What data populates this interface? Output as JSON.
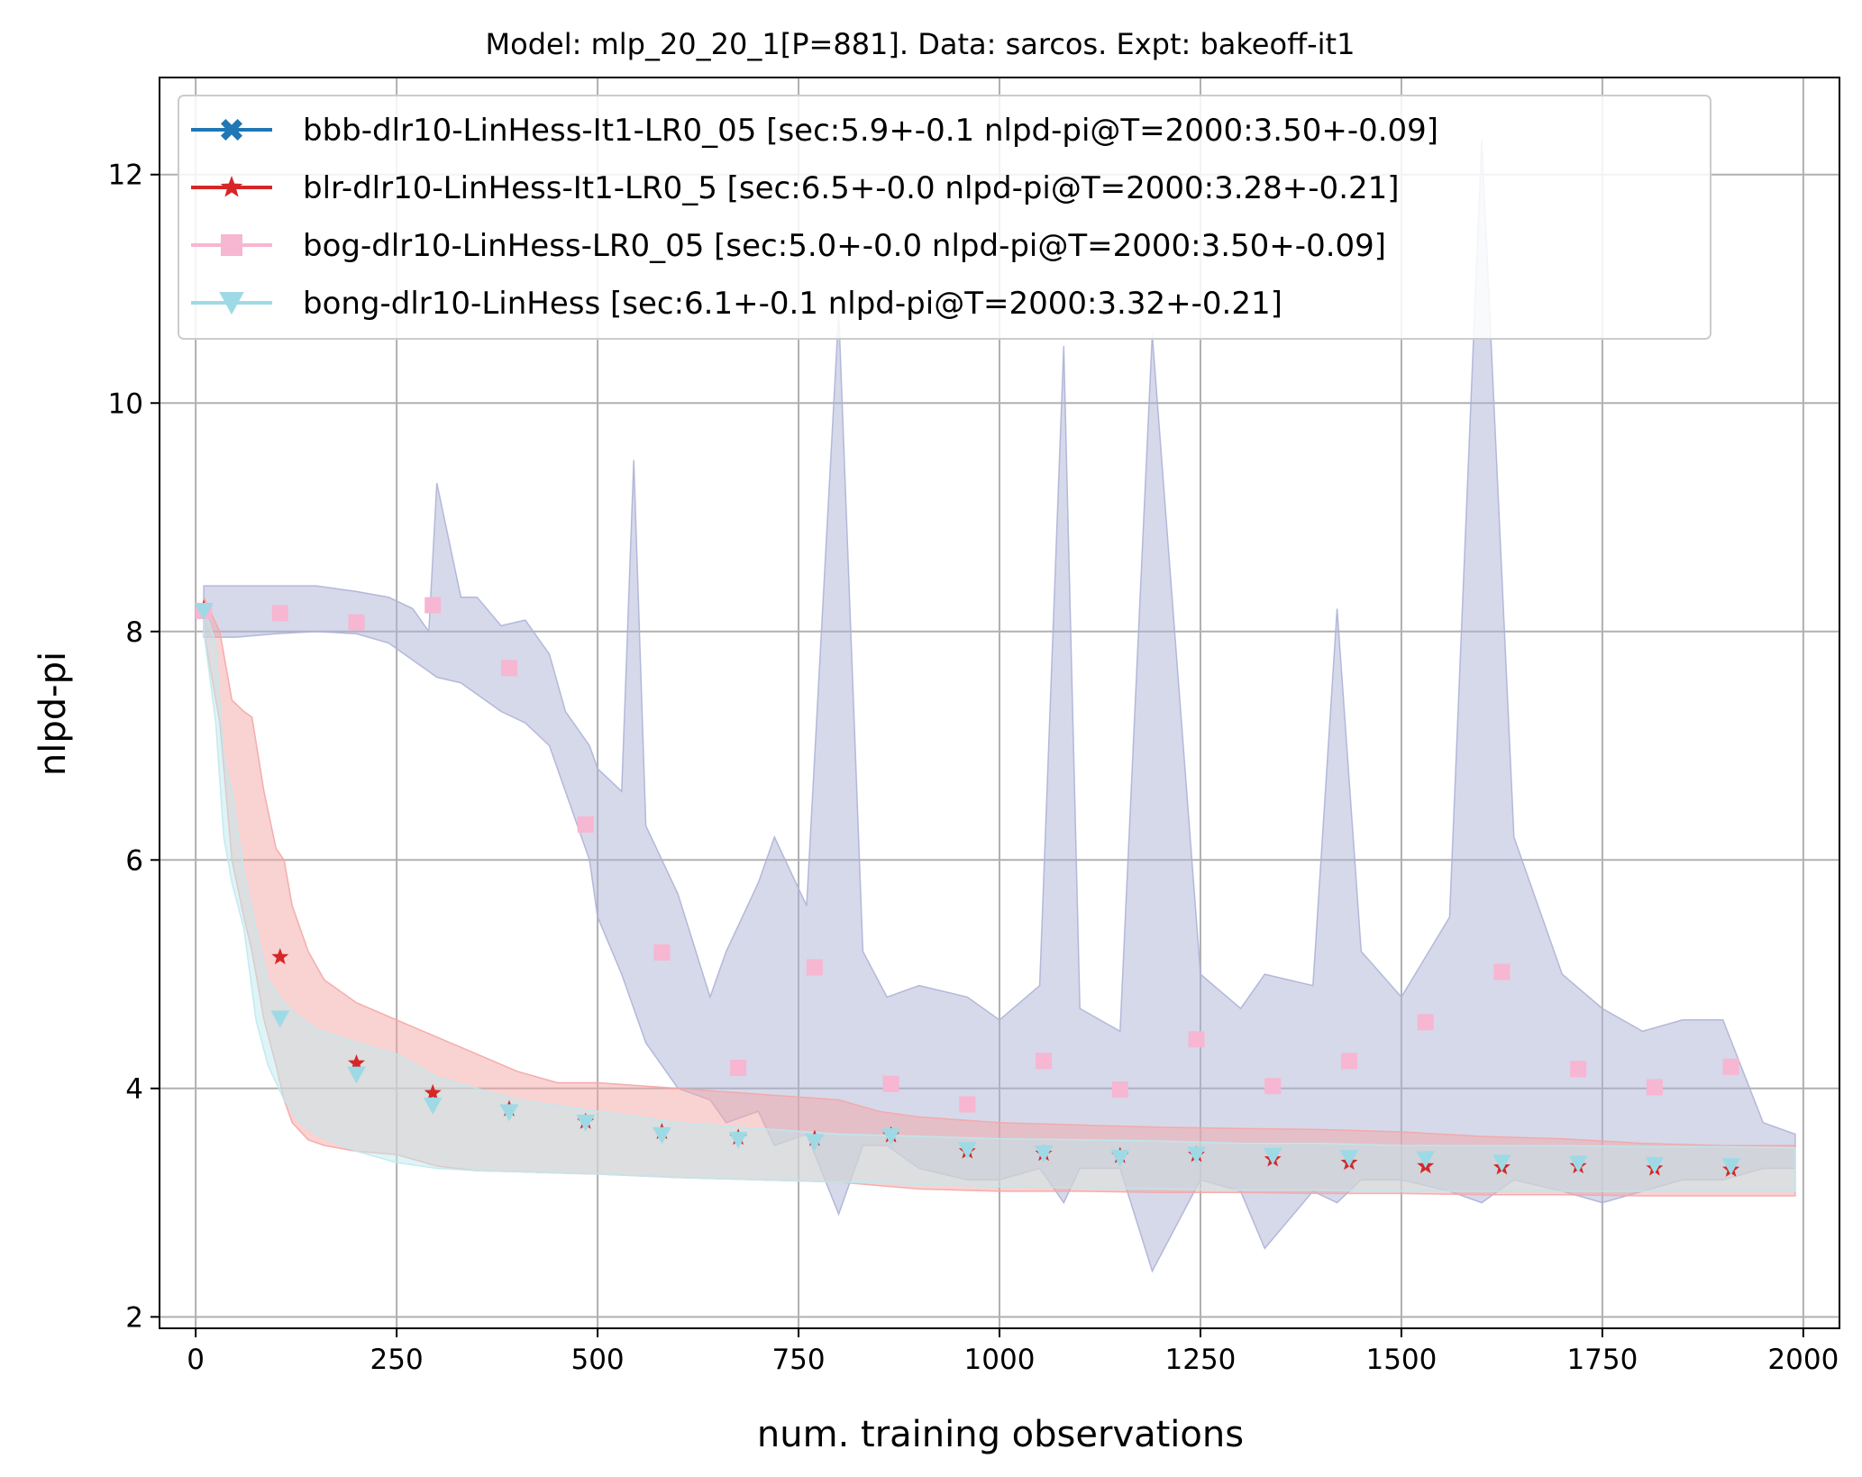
{
  "chart_data": {
    "type": "line",
    "title": "Model: mlp_20_20_1[P=881]. Data: sarcos. Expt: bakeoff-it1",
    "xlabel": "num. training observations",
    "ylabel": "nlpd-pi",
    "xlim": [
      -45,
      2045
    ],
    "ylim": [
      1.9,
      12.85
    ],
    "xticks": [
      0,
      250,
      500,
      750,
      1000,
      1250,
      1500,
      1750,
      2000
    ],
    "yticks": [
      2,
      4,
      6,
      8,
      10,
      12
    ],
    "grid": true,
    "legend_position": "top-left",
    "series": [
      {
        "name": "bbb-dlr10-LinHess-It1-LR0_05 [sec:5.9+-0.1 nlpd-pi@T=2000:3.50+-0.09]",
        "color": "#1f77b4",
        "marker": "x-filled",
        "x": [
          10,
          105,
          200,
          295,
          390,
          485,
          580,
          675,
          770,
          865,
          960,
          1055,
          1150,
          1245,
          1340,
          1435,
          1530,
          1625,
          1720,
          1815,
          1910
        ],
        "y": [
          8.18,
          8.16,
          8.08,
          8.23,
          7.68,
          6.31,
          5.19,
          4.18,
          5.06,
          4.04,
          3.86,
          4.24,
          3.99,
          4.43,
          4.02,
          4.24,
          4.58,
          5.02,
          4.17,
          4.01,
          4.19
        ]
      },
      {
        "name": "blr-dlr10-LinHess-It1-LR0_5 [sec:6.5+-0.0 nlpd-pi@T=2000:3.28+-0.21]",
        "color": "#d62728",
        "marker": "star",
        "x": [
          10,
          105,
          200,
          295,
          390,
          485,
          580,
          675,
          770,
          865,
          960,
          1055,
          1150,
          1245,
          1340,
          1435,
          1530,
          1625,
          1720,
          1815,
          1910
        ],
        "y": [
          8.2,
          5.15,
          4.22,
          3.96,
          3.82,
          3.71,
          3.62,
          3.57,
          3.56,
          3.59,
          3.45,
          3.43,
          3.41,
          3.42,
          3.38,
          3.35,
          3.32,
          3.31,
          3.32,
          3.3,
          3.29
        ]
      },
      {
        "name": "bog-dlr10-LinHess-LR0_05 [sec:5.0+-0.0 nlpd-pi@T=2000:3.50+-0.09]",
        "color": "#f7b6d2",
        "marker": "square",
        "x": [
          10,
          105,
          200,
          295,
          390,
          485,
          580,
          675,
          770,
          865,
          960,
          1055,
          1150,
          1245,
          1340,
          1435,
          1530,
          1625,
          1720,
          1815,
          1910
        ],
        "y": [
          8.18,
          8.16,
          8.08,
          8.23,
          7.68,
          6.31,
          5.19,
          4.18,
          5.06,
          4.04,
          3.86,
          4.24,
          3.99,
          4.43,
          4.02,
          4.24,
          4.58,
          5.02,
          4.17,
          4.01,
          4.19
        ]
      },
      {
        "name": "bong-dlr10-LinHess [sec:6.1+-0.1 nlpd-pi@T=2000:3.32+-0.21]",
        "color": "#9edae5",
        "marker": "triangle-down",
        "x": [
          10,
          105,
          200,
          295,
          390,
          485,
          580,
          675,
          770,
          865,
          960,
          1055,
          1150,
          1245,
          1340,
          1435,
          1530,
          1625,
          1720,
          1815,
          1910
        ],
        "y": [
          8.18,
          4.61,
          4.12,
          3.85,
          3.79,
          3.7,
          3.59,
          3.55,
          3.53,
          3.58,
          3.46,
          3.43,
          3.39,
          3.42,
          3.41,
          3.39,
          3.38,
          3.35,
          3.34,
          3.33,
          3.32
        ]
      }
    ],
    "bands": [
      {
        "series": "bbb-dlr10-LinHess-It1-LR0_05 [sec:5.9+-0.1 nlpd-pi@T=2000:3.50+-0.09]",
        "color": "#aeb3d6",
        "x": [
          10,
          50,
          100,
          150,
          200,
          240,
          270,
          290,
          300,
          330,
          350,
          380,
          410,
          440,
          460,
          490,
          500,
          530,
          545,
          560,
          600,
          640,
          660,
          700,
          720,
          760,
          800,
          830,
          860,
          900,
          960,
          1000,
          1050,
          1080,
          1100,
          1150,
          1190,
          1250,
          1300,
          1330,
          1390,
          1420,
          1450,
          1500,
          1560,
          1600,
          1640,
          1700,
          1750,
          1800,
          1850,
          1900,
          1950,
          1990
        ],
        "upper": [
          8.4,
          8.4,
          8.4,
          8.4,
          8.35,
          8.3,
          8.2,
          8.0,
          9.3,
          8.3,
          8.3,
          8.05,
          8.1,
          7.8,
          7.3,
          7.0,
          6.8,
          6.6,
          9.5,
          6.3,
          5.7,
          4.8,
          5.2,
          5.8,
          6.2,
          5.6,
          10.8,
          5.2,
          4.8,
          4.9,
          4.8,
          4.6,
          4.9,
          10.5,
          4.7,
          4.5,
          10.6,
          5.0,
          4.7,
          5.0,
          4.9,
          8.2,
          5.2,
          4.8,
          5.5,
          12.3,
          6.2,
          5.0,
          4.7,
          4.5,
          4.6,
          4.6,
          3.7,
          3.6
        ],
        "lower": [
          7.95,
          7.95,
          7.98,
          8.0,
          7.98,
          7.9,
          7.75,
          7.65,
          7.6,
          7.55,
          7.45,
          7.3,
          7.2,
          7.0,
          6.6,
          6.0,
          5.5,
          5.0,
          4.7,
          4.4,
          4.0,
          3.9,
          3.7,
          3.8,
          3.5,
          3.6,
          2.9,
          3.5,
          3.5,
          3.3,
          3.2,
          3.2,
          3.3,
          3.0,
          3.3,
          3.3,
          2.4,
          3.2,
          3.1,
          2.6,
          3.1,
          3.0,
          3.2,
          3.2,
          3.1,
          3.0,
          3.2,
          3.1,
          3.0,
          3.1,
          3.2,
          3.2,
          3.3,
          3.3
        ]
      },
      {
        "series": "blr-dlr10-LinHess-It1-LR0_5 [sec:6.5+-0.0 nlpd-pi@T=2000:3.28+-0.21]",
        "color": "#f4a6a6",
        "x": [
          10,
          30,
          45,
          60,
          70,
          85,
          100,
          110,
          120,
          140,
          160,
          200,
          250,
          300,
          350,
          400,
          450,
          500,
          600,
          700,
          800,
          850,
          900,
          1000,
          1100,
          1200,
          1300,
          1400,
          1500,
          1600,
          1700,
          1800,
          1900,
          1990
        ],
        "upper": [
          8.3,
          8.0,
          7.4,
          7.3,
          7.25,
          6.6,
          6.1,
          6.0,
          5.6,
          5.2,
          4.95,
          4.75,
          4.6,
          4.45,
          4.3,
          4.15,
          4.05,
          4.05,
          4.0,
          3.95,
          3.9,
          3.8,
          3.75,
          3.7,
          3.68,
          3.66,
          3.65,
          3.64,
          3.62,
          3.58,
          3.56,
          3.52,
          3.5,
          3.5
        ],
        "lower": [
          8.0,
          7.2,
          6.0,
          5.5,
          5.2,
          4.6,
          4.2,
          3.9,
          3.7,
          3.55,
          3.5,
          3.45,
          3.42,
          3.32,
          3.28,
          3.27,
          3.26,
          3.25,
          3.22,
          3.2,
          3.18,
          3.15,
          3.12,
          3.1,
          3.1,
          3.09,
          3.09,
          3.08,
          3.08,
          3.07,
          3.07,
          3.06,
          3.06,
          3.06
        ]
      },
      {
        "series": "bong-dlr10-LinHess [sec:6.1+-0.1 nlpd-pi@T=2000:3.32+-0.21]",
        "color": "#bfe9ee",
        "x": [
          10,
          25,
          35,
          45,
          60,
          75,
          90,
          110,
          130,
          150,
          200,
          250,
          300,
          350,
          400,
          500,
          600,
          700,
          800,
          900,
          1000,
          1100,
          1200,
          1300,
          1400,
          1500,
          1600,
          1700,
          1800,
          1900,
          1990
        ],
        "upper": [
          8.2,
          7.9,
          6.9,
          6.6,
          5.9,
          5.4,
          4.95,
          4.75,
          4.62,
          4.52,
          4.4,
          4.3,
          4.1,
          4.0,
          3.9,
          3.8,
          3.7,
          3.65,
          3.6,
          3.58,
          3.56,
          3.55,
          3.54,
          3.52,
          3.52,
          3.5,
          3.5,
          3.5,
          3.49,
          3.49,
          3.48
        ],
        "lower": [
          8.0,
          7.2,
          6.2,
          5.8,
          5.4,
          4.6,
          4.2,
          3.9,
          3.7,
          3.6,
          3.45,
          3.35,
          3.3,
          3.28,
          3.27,
          3.25,
          3.22,
          3.2,
          3.18,
          3.16,
          3.14,
          3.13,
          3.12,
          3.11,
          3.11,
          3.1,
          3.1,
          3.1,
          3.1,
          3.1,
          3.1
        ]
      }
    ]
  }
}
